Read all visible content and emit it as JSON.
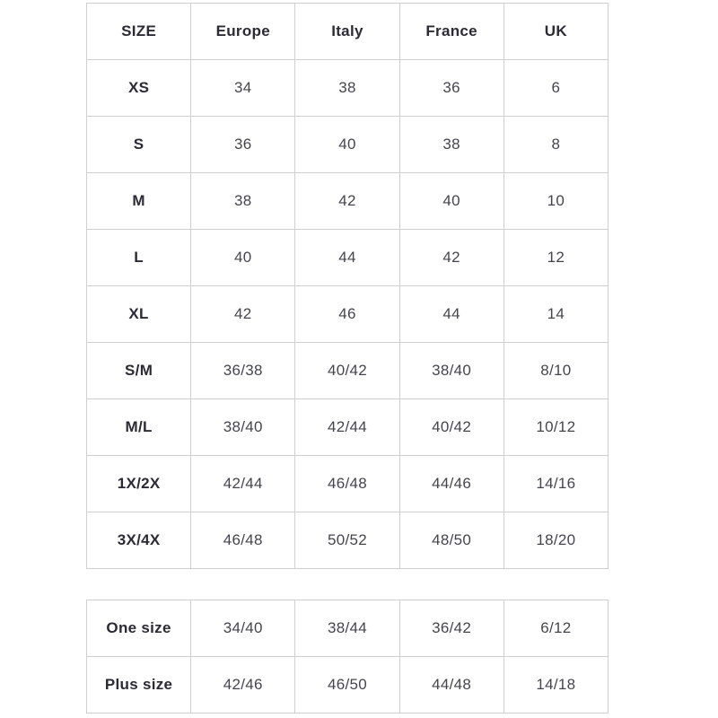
{
  "colors": {
    "border": "#cfcfcf",
    "header_text": "#2b2b36",
    "body_text": "#45454f",
    "bg": "#ffffff"
  },
  "main_table": {
    "headers": [
      "SIZE",
      "Europe",
      "Italy",
      "France",
      "UK"
    ],
    "rows": [
      [
        "XS",
        "34",
        "38",
        "36",
        "6"
      ],
      [
        "S",
        "36",
        "40",
        "38",
        "8"
      ],
      [
        "M",
        "38",
        "42",
        "40",
        "10"
      ],
      [
        "L",
        "40",
        "44",
        "42",
        "12"
      ],
      [
        "XL",
        "42",
        "46",
        "44",
        "14"
      ],
      [
        "S/M",
        "36/38",
        "40/42",
        "38/40",
        "8/10"
      ],
      [
        "M/L",
        "38/40",
        "42/44",
        "40/42",
        "10/12"
      ],
      [
        "1X/2X",
        "42/44",
        "46/48",
        "44/46",
        "14/16"
      ],
      [
        "3X/4X",
        "46/48",
        "50/52",
        "48/50",
        "18/20"
      ]
    ]
  },
  "extra_table": {
    "rows": [
      [
        "One size",
        "34/40",
        "38/44",
        "36/42",
        "6/12"
      ],
      [
        "Plus size",
        "42/46",
        "46/50",
        "44/48",
        "14/18"
      ]
    ]
  }
}
